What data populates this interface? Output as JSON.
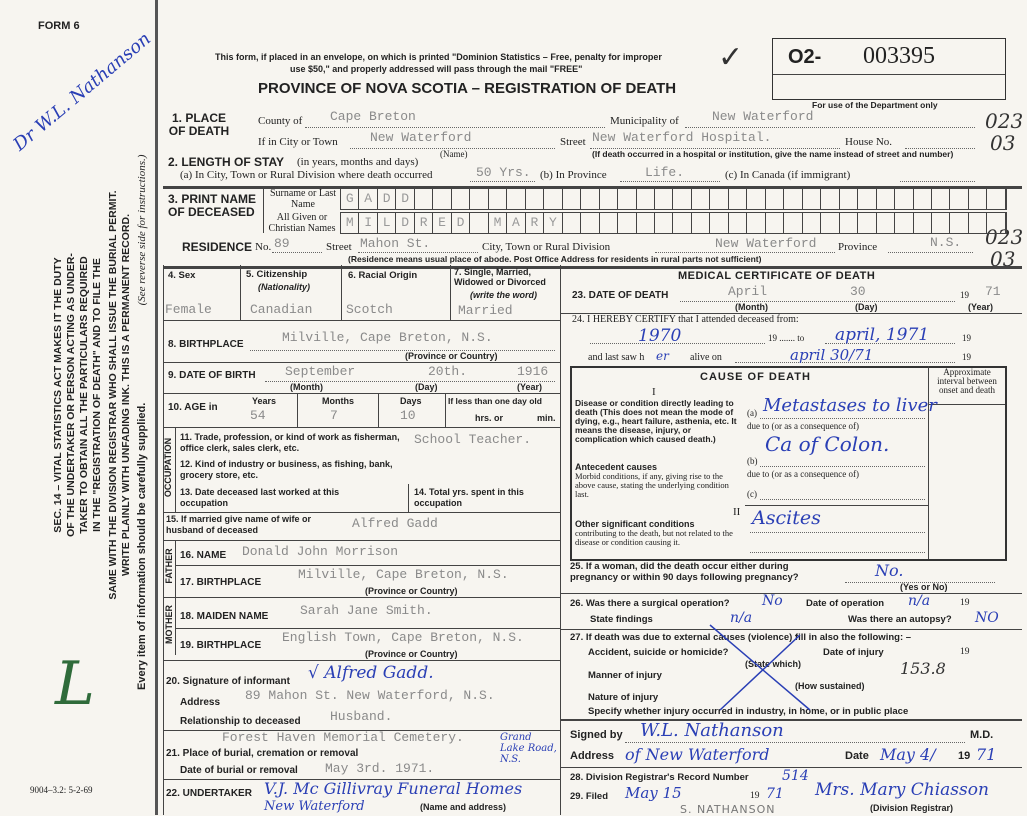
{
  "margin": {
    "form_no": "FORM 6",
    "signature": "Dr W.L. Nathanson",
    "statute": [
      "SEC. 14 – VITAL STATISTICS ACT MAKES IT THE DUTY",
      "OF THE UNDERTAKER OR PERSON ACTING AS UNDER-",
      "TAKER TO OBTAIN ALL THE PARTICULARS REQUIRED",
      "IN THE \"REGISTRATION OF DEATH\" AND TO FILE THE",
      "SAME WITH THE DIVISION REGISTRAR WHO SHALL ISSUE THE BURIAL PERMIT.",
      "WRITE PLAINLY WITH UNFADING INK. THIS IS A PERMANENT RECORD."
    ],
    "every_item": "Every item of information should be carefully supplied.",
    "see_reverse": "(See reverse side for instructions.)",
    "print_code": "9004–3.2: 5-2-69",
    "initial": "L"
  },
  "header": {
    "mail_notice_1": "This form, if placed in an envelope, on which is printed \"Dominion Statistics – Free, penalty for improper",
    "mail_notice_2": "use $50,\" and properly addressed will pass through the mail \"FREE\"",
    "title": "PROVINCE OF NOVA SCOTIA – REGISTRATION OF DEATH",
    "reg_prefix": "O2-",
    "reg_number": "003395",
    "check": "✓",
    "dept_only": "For use of the Department only",
    "codes": [
      "023",
      "03",
      "023",
      "03"
    ]
  },
  "place": {
    "label": "1. PLACE OF DEATH",
    "county_label": "County of",
    "county": "Cape Breton",
    "municipality_label": "Municipality of",
    "municipality": "New Waterford",
    "city_label": "If in City or Town",
    "city": "New Waterford",
    "name_hint": "(Name)",
    "street_label": "Street",
    "street": "New Waterford Hospital.",
    "house_label": "House No.",
    "hospital_hint": "(If death occurred in a hospital or institution, give the name instead of street and number)"
  },
  "stay": {
    "label": "2. LENGTH OF STAY",
    "hint": "(in years, months and days)",
    "a_label": "(a) In City, Town or Rural Division where death occurred",
    "a": "50 Yrs.",
    "b_label": "(b) In Province",
    "b": "Life.",
    "c_label": "(c) In Canada (if immigrant)"
  },
  "deceased": {
    "label": "3. PRINT NAME OF DECEASED",
    "surname_label": "Surname or Last Name",
    "given_label": "All Given or Christian Names",
    "surname_letters": [
      "G",
      "A",
      "D",
      "D"
    ],
    "given_letters": [
      "M",
      "I",
      "L",
      "D",
      "R",
      "E",
      "D",
      "",
      "M",
      "A",
      "R",
      "Y"
    ]
  },
  "residence": {
    "label": "RESIDENCE",
    "no_label": "No.",
    "no": "89",
    "street_label": "Street",
    "street": "Mahon St.",
    "city_label": "City, Town or Rural Division",
    "city": "New Waterford",
    "province_label": "Province",
    "province": "N.S.",
    "hint": "(Residence means usual place of abode. Post Office Address for residents in rural parts not sufficient)"
  },
  "personal": {
    "sex_label": "4. Sex",
    "sex": "Female",
    "citizenship_label": "5. Citizenship",
    "citizenship_hint": "(Nationality)",
    "citizenship": "Canadian",
    "racial_label": "6. Racial Origin",
    "racial": "Scotch",
    "marital_label": "7. Single, Married, Widowed or Divorced",
    "marital_hint": "(write the word)",
    "marital": "Married",
    "birthplace_label": "8. BIRTHPLACE",
    "birthplace": "Milville, Cape Breton, N.S.",
    "prov_hint": "(Province or Country)",
    "dob_label": "9. DATE OF BIRTH",
    "dob_month": "September",
    "dob_day": "20th.",
    "dob_year": "1916",
    "month_hint": "(Month)",
    "day_hint": "(Day)",
    "year_hint": "(Year)",
    "age_label": "10. AGE in",
    "years_label": "Years",
    "years": "54",
    "months_label": "Months",
    "months": "7",
    "days_label": "Days",
    "days": "10",
    "less_day_label": "If less than one day old",
    "hrs_label": "hrs. or",
    "min_label": "min."
  },
  "occupation": {
    "side": "OCCUPATION",
    "trade_label": "11. Trade, profession, or kind of work as fisherman, office clerk, sales clerk, etc.",
    "trade": "School Teacher.",
    "industry_label": "12. Kind of industry or business, as fishing, bank, grocery store, etc.",
    "last_worked_label": "13. Date deceased last worked at this occupation",
    "total_years_label": "14. Total yrs. spent in this occupation"
  },
  "spouse": {
    "label": "15. If married give name of wife or husband of deceased",
    "value": "Alfred Gadd"
  },
  "father": {
    "side": "FATHER",
    "name_label": "16. NAME",
    "name": "Donald John Morrison",
    "birthplace_label": "17. BIRTHPLACE",
    "birthplace": "Milville, Cape Breton, N.S."
  },
  "mother": {
    "side": "MOTHER",
    "maiden_label": "18. MAIDEN NAME",
    "maiden": "Sarah Jane Smith.",
    "birthplace_label": "19. BIRTHPLACE",
    "birthplace": "English Town, Cape Breton, N.S."
  },
  "informant": {
    "sig_label": "20. Signature of informant",
    "signature": "√ Alfred Gadd.",
    "address_label": "Address",
    "address": "89 Mahon St. New Waterford, N.S.",
    "relationship_label": "Relationship to deceased",
    "relationship": "Husband."
  },
  "burial": {
    "place_label": "21. Place of burial, cremation or removal",
    "place": "Forest Haven Memorial Cemetery.",
    "place_hand": "Grand Lake Road, N.S.",
    "date_label": "Date of burial or removal",
    "date": "May 3rd. 1971."
  },
  "undertaker": {
    "label": "22. UNDERTAKER",
    "value": "V.J. Mc Gillivray Funeral Homes",
    "value2": "New Waterford",
    "hint": "(Name and address)"
  },
  "medical": {
    "title": "MEDICAL CERTIFICATE OF DEATH",
    "dod_label": "23. DATE OF DEATH",
    "dod_month": "April",
    "dod_day": "30",
    "dod_year_prefix": "19",
    "dod_year": "71",
    "certify_label": "24. I HEREBY CERTIFY that I attended deceased from:",
    "from": "1970",
    "to_label": "19 ....... to",
    "to": "april, 1971",
    "nineteen": "19",
    "last_saw_label": "and last saw h",
    "last_saw_suffix": "er",
    "alive_label": "alive on",
    "alive": "april 30/71",
    "cause_title": "CAUSE OF DEATH",
    "part1": "I",
    "part2": "II",
    "interval_label": "Approximate interval between onset and death",
    "direct_label": "Disease or condition directly leading to death (This does not mean the mode of dying, e.g., heart failure, asthenia, etc. It means the disease, injury, or complication which caused death.)",
    "antecedent_title": "Antecedent causes",
    "antecedent_label": "Morbid conditions, if any, giving rise to the above cause, stating the underlying condition last.",
    "other_title": "Other significant conditions",
    "other_label": "contributing to the death, but not related to the disease or condition causing it.",
    "a_label": "(a)",
    "a": "Metastases to liver",
    "due_to": "due to (or as a consequence of)",
    "b_label": "(b)",
    "b": "Ca of Colon.",
    "c_label": "(c)",
    "other": "Ascites"
  },
  "questions": {
    "q25": "25. If a woman, did the death occur either during pregnancy or within 90 days following pregnancy?",
    "q25_ans": "No.",
    "yes_no": "(Yes or No)",
    "q26": "26. Was there a surgical operation?",
    "q26_ans": "No",
    "op_date_label": "Date of operation",
    "op_date": "n/a",
    "nineteen": "19",
    "findings_label": "State findings",
    "findings": "n/a",
    "autopsy_label": "Was there an autopsy?",
    "autopsy": "NO",
    "q27": "27. If death was due to external causes (violence) fill in also the following: –",
    "accident_label": "Accident, suicide or homicide?",
    "state_which": "(State which)",
    "injury_date_label": "Date of injury",
    "manner_label": "Manner of injury",
    "how_sustained": "(How sustained)",
    "code": "153.8",
    "nature_label": "Nature of injury",
    "specify_label": "Specify whether injury occurred in industry, in home, or in public place"
  },
  "signoff": {
    "signed_label": "Signed by",
    "signed": "W.L. Nathanson",
    "md": "M.D.",
    "address_label": "Address",
    "address": "of New Waterford",
    "date_label": "Date",
    "date": "May 4/",
    "year_prefix": "19",
    "year": "71",
    "record_label": "28. Division Registrar's Record Number",
    "record": "514",
    "filed_label": "29. Filed",
    "filed": "May 15",
    "filed_year_prefix": "19",
    "filed_year": "71",
    "registrar_sig": "Mrs. Mary Chiasson",
    "registrar_label": "(Division Registrar)",
    "stamp": "S. NATHANSON"
  }
}
